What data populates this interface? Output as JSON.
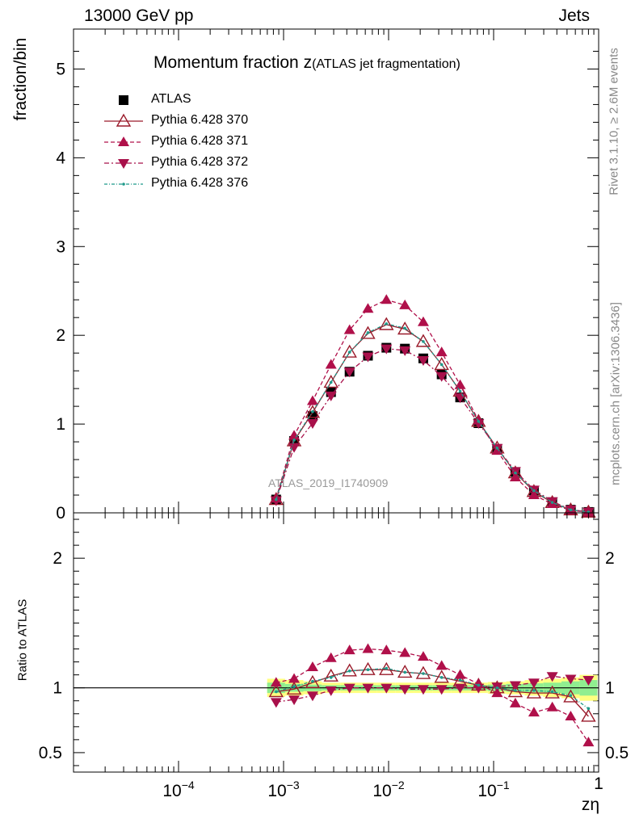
{
  "header": {
    "left": "13000 GeV pp",
    "right": "Jets"
  },
  "side_text": {
    "rivet": "Rivet 3.1.10, ≥ 2.6M events",
    "mcplots": "mcplots.cern.ch [arXiv:1306.3436]"
  },
  "watermark": "ATLAS_2019_I1740909",
  "colors": {
    "atlas": "#000000",
    "p370": "#9a1a2a",
    "p371": "#b0104a",
    "p372": "#a8104a",
    "p376": "#1f9a8a",
    "band_inner": "#90ee90",
    "band_outer": "#ffff80"
  },
  "chart_data": [
    {
      "type": "scatter",
      "title": "Momentum fraction",
      "title_symbol": "z",
      "subtitle": "(ATLAS jet fragmentation)",
      "xlabel": "zη",
      "ylabel": "fraction/bin",
      "xscale": "log",
      "xlim": [
        1e-05,
        1
      ],
      "ylim": [
        0,
        5.45
      ],
      "yticks": [
        "0",
        "1",
        "2",
        "3",
        "4",
        "5"
      ],
      "xticks": [
        "10^{-4}",
        "10^{-3}",
        "10^{-2}",
        "10^{-1}",
        "1"
      ],
      "legend_position": "top-left",
      "x": [
        0.00085,
        0.00126,
        0.00189,
        0.00283,
        0.00425,
        0.00636,
        0.00953,
        0.0143,
        0.0214,
        0.032,
        0.048,
        0.0718,
        0.108,
        0.161,
        0.242,
        0.362,
        0.542,
        0.8
      ],
      "series": [
        {
          "name": "ATLAS",
          "marker": "square",
          "values": [
            0.15,
            0.81,
            1.09,
            1.36,
            1.59,
            1.77,
            1.86,
            1.85,
            1.74,
            1.56,
            1.3,
            1.01,
            0.72,
            0.46,
            0.25,
            0.12,
            0.035,
            0.01
          ]
        },
        {
          "name": "Pythia 6.428 370",
          "marker": "triangle-up-open",
          "values": [
            0.15,
            0.81,
            1.13,
            1.47,
            1.81,
            2.02,
            2.12,
            2.07,
            1.93,
            1.67,
            1.37,
            1.03,
            0.73,
            0.45,
            0.24,
            0.116,
            0.033,
            0.008
          ]
        },
        {
          "name": "Pythia 6.428 371",
          "marker": "triangle-up",
          "values": [
            0.16,
            0.87,
            1.26,
            1.67,
            2.06,
            2.3,
            2.4,
            2.34,
            2.15,
            1.81,
            1.44,
            1.04,
            0.7,
            0.4,
            0.2,
            0.1,
            0.027,
            0.006
          ]
        },
        {
          "name": "Pythia 6.428 372",
          "marker": "triangle-down",
          "values": [
            0.14,
            0.74,
            1.01,
            1.32,
            1.59,
            1.76,
            1.85,
            1.83,
            1.72,
            1.54,
            1.3,
            1.01,
            0.73,
            0.47,
            0.26,
            0.13,
            0.036,
            0.011
          ]
        },
        {
          "name": "Pythia 6.428 376",
          "marker": "dot",
          "values": [
            0.15,
            0.82,
            1.14,
            1.47,
            1.81,
            2.03,
            2.13,
            2.08,
            1.93,
            1.67,
            1.37,
            1.03,
            0.73,
            0.45,
            0.25,
            0.117,
            0.034,
            0.009
          ]
        }
      ]
    },
    {
      "type": "scatter",
      "title": "",
      "ylabel": "Ratio to ATLAS",
      "xlabel": "zη",
      "xscale": "log",
      "xlim": [
        1e-05,
        1
      ],
      "ylim": [
        0.35,
        2.35
      ],
      "yticks": [
        "0.5",
        "1",
        "2"
      ],
      "reference_line": 1,
      "x": [
        0.00085,
        0.00126,
        0.00189,
        0.00283,
        0.00425,
        0.00636,
        0.00953,
        0.0143,
        0.0214,
        0.032,
        0.048,
        0.0718,
        0.108,
        0.161,
        0.242,
        0.362,
        0.542,
        0.8
      ],
      "band_inner": [
        0.04,
        0.03,
        0.025,
        0.02,
        0.02,
        0.02,
        0.02,
        0.02,
        0.02,
        0.02,
        0.02,
        0.02,
        0.025,
        0.03,
        0.035,
        0.04,
        0.05,
        0.06
      ],
      "band_outer": [
        0.07,
        0.06,
        0.05,
        0.04,
        0.04,
        0.04,
        0.04,
        0.04,
        0.04,
        0.04,
        0.04,
        0.04,
        0.045,
        0.05,
        0.06,
        0.07,
        0.08,
        0.1
      ],
      "series": [
        {
          "name": "Pythia 6.428 370",
          "values": [
            0.97,
            0.99,
            1.04,
            1.09,
            1.13,
            1.14,
            1.14,
            1.12,
            1.11,
            1.08,
            1.05,
            1.02,
            1.0,
            0.97,
            0.96,
            0.96,
            0.93,
            0.78
          ]
        },
        {
          "name": "Pythia 6.428 371",
          "values": [
            1.04,
            1.07,
            1.16,
            1.23,
            1.29,
            1.3,
            1.29,
            1.27,
            1.24,
            1.17,
            1.1,
            1.03,
            0.96,
            0.88,
            0.81,
            0.85,
            0.78,
            0.58
          ]
        },
        {
          "name": "Pythia 6.428 372",
          "values": [
            0.89,
            0.91,
            0.94,
            0.98,
            1.0,
            1.0,
            1.0,
            0.99,
            0.99,
            0.99,
            1.0,
            1.0,
            1.01,
            1.02,
            1.04,
            1.09,
            1.07,
            1.06
          ]
        },
        {
          "name": "Pythia 6.428 376",
          "values": [
            0.97,
            1.01,
            1.05,
            1.08,
            1.13,
            1.14,
            1.15,
            1.12,
            1.11,
            1.08,
            1.06,
            1.02,
            1.0,
            0.98,
            0.98,
            0.97,
            0.94,
            0.84
          ]
        }
      ]
    }
  ]
}
